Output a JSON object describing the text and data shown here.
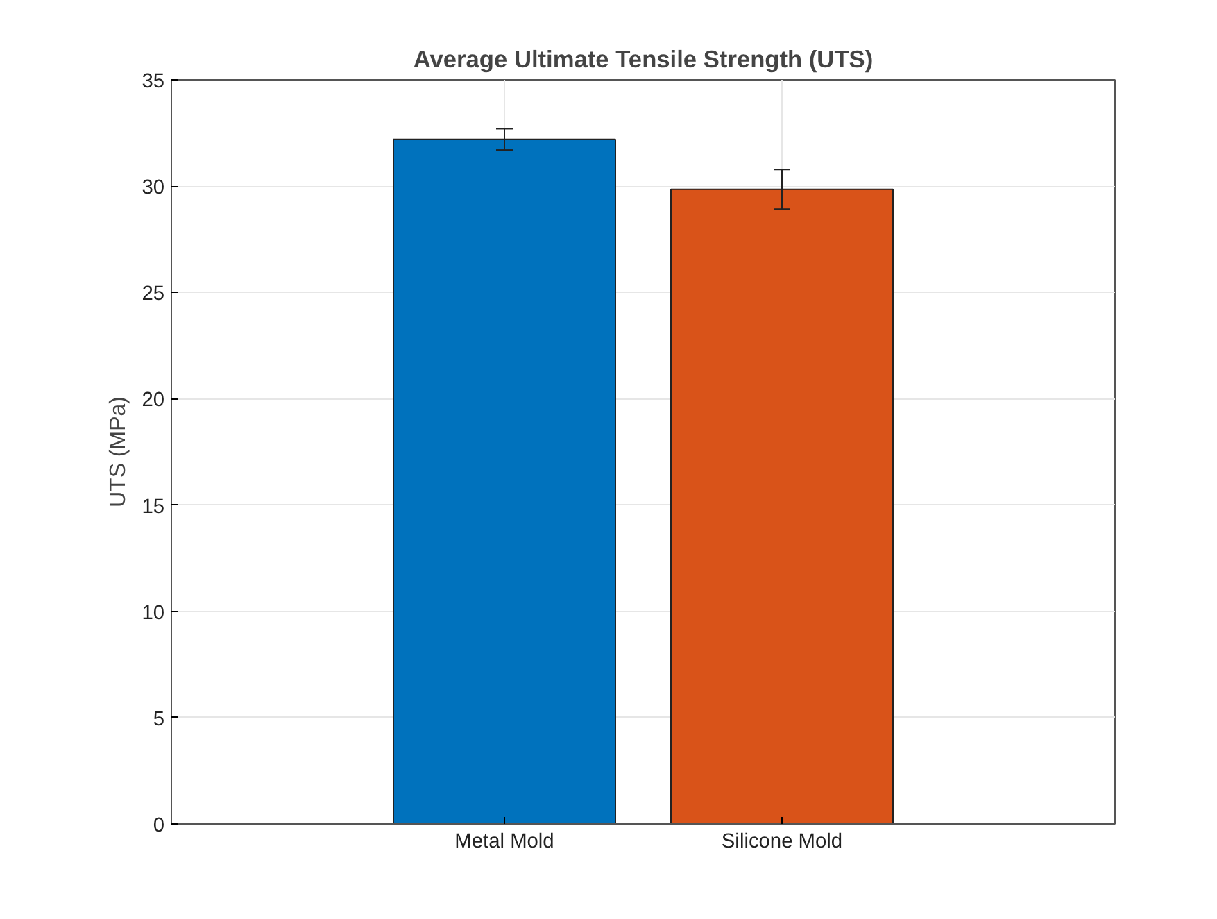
{
  "chart_data": {
    "type": "bar",
    "title": "Average Ultimate Tensile Strength (UTS)",
    "ylabel": "UTS (MPa)",
    "categories": [
      "Metal Mold",
      "Silicone Mold"
    ],
    "values": [
      32.2,
      29.85
    ],
    "colors": [
      "#0072bd",
      "#d95319"
    ],
    "errors": [
      0.5,
      0.93
    ],
    "ylim": [
      0,
      35
    ],
    "yticks": [
      0,
      5,
      10,
      15,
      20,
      25,
      30,
      35
    ],
    "grid": true
  }
}
